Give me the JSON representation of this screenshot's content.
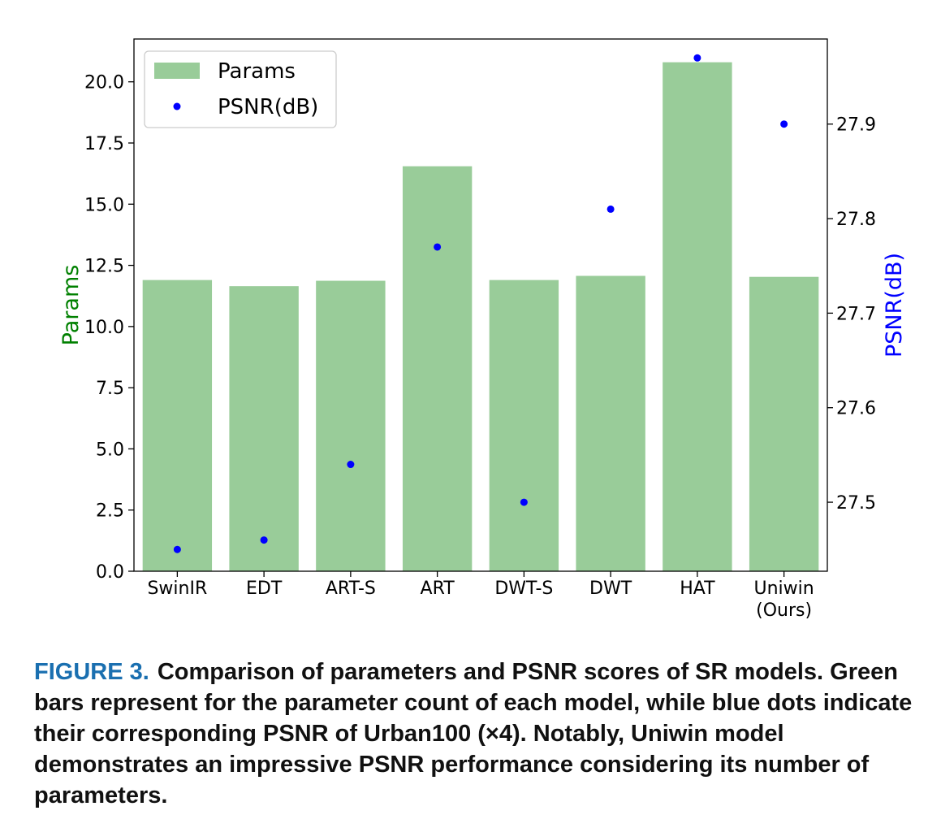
{
  "chart_data": {
    "type": "bar",
    "categories": [
      "SwinIR",
      "EDT",
      "ART-S",
      "ART",
      "DWT-S",
      "DWT",
      "HAT",
      "Uniwin\n(Ours)"
    ],
    "series": [
      {
        "name": "Params",
        "axis": "left",
        "kind": "bar",
        "color": "#99cc99",
        "values": [
          11.9,
          11.65,
          11.87,
          16.55,
          11.9,
          12.07,
          20.8,
          12.03
        ]
      },
      {
        "name": "PSNR(dB)",
        "axis": "right",
        "kind": "scatter",
        "color": "#0000ff",
        "values": [
          27.45,
          27.46,
          27.54,
          27.77,
          27.5,
          27.81,
          27.97,
          27.9
        ]
      }
    ],
    "ylabel": "Params",
    "ylabel_color": "#008000",
    "y2label": "PSNR(dB)",
    "y2label_color": "#0000ff",
    "ylim": [
      0,
      21.75
    ],
    "y2lim": [
      27.427,
      27.99
    ],
    "yticks": [
      "0.0",
      "2.5",
      "5.0",
      "7.5",
      "10.0",
      "12.5",
      "15.0",
      "17.5",
      "20.0"
    ],
    "y2ticks": [
      "27.5",
      "27.6",
      "27.7",
      "27.8",
      "27.9"
    ],
    "legend": {
      "position": "top-left",
      "entries": [
        "Params",
        "PSNR(dB)"
      ]
    },
    "grid": false
  },
  "caption": {
    "label": "FIGURE 3.",
    "text": "Comparison of parameters and PSNR scores of SR models. Green bars represent for the parameter count of each model, while blue dots indicate their corresponding PSNR of Urban100 (×4). Notably, Uniwin model demonstrates an impressive PSNR performance considering its number of parameters."
  }
}
